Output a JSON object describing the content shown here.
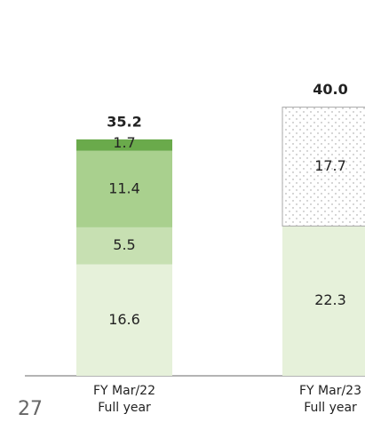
{
  "chart_data": {
    "type": "stacked_bar",
    "categories": [
      "FY Mar/22\nFull year",
      "FY Mar/23\nFull year"
    ],
    "series": [
      {
        "color": "#e6f1da",
        "values": [
          16.6,
          22.3
        ]
      },
      {
        "color": "#c7e0b2",
        "values": [
          5.5,
          null
        ]
      },
      {
        "color": "#a9d08e",
        "values": [
          11.4,
          null
        ]
      },
      {
        "color": "#6aaa4b",
        "values": [
          1.7,
          null
        ]
      },
      {
        "color": "#ffffff",
        "pattern": "dots",
        "values": [
          null,
          17.7
        ]
      }
    ],
    "totals": [
      35.2,
      40.0
    ],
    "total_labels": [
      "35.2",
      "40.0"
    ]
  },
  "page_number": "27"
}
